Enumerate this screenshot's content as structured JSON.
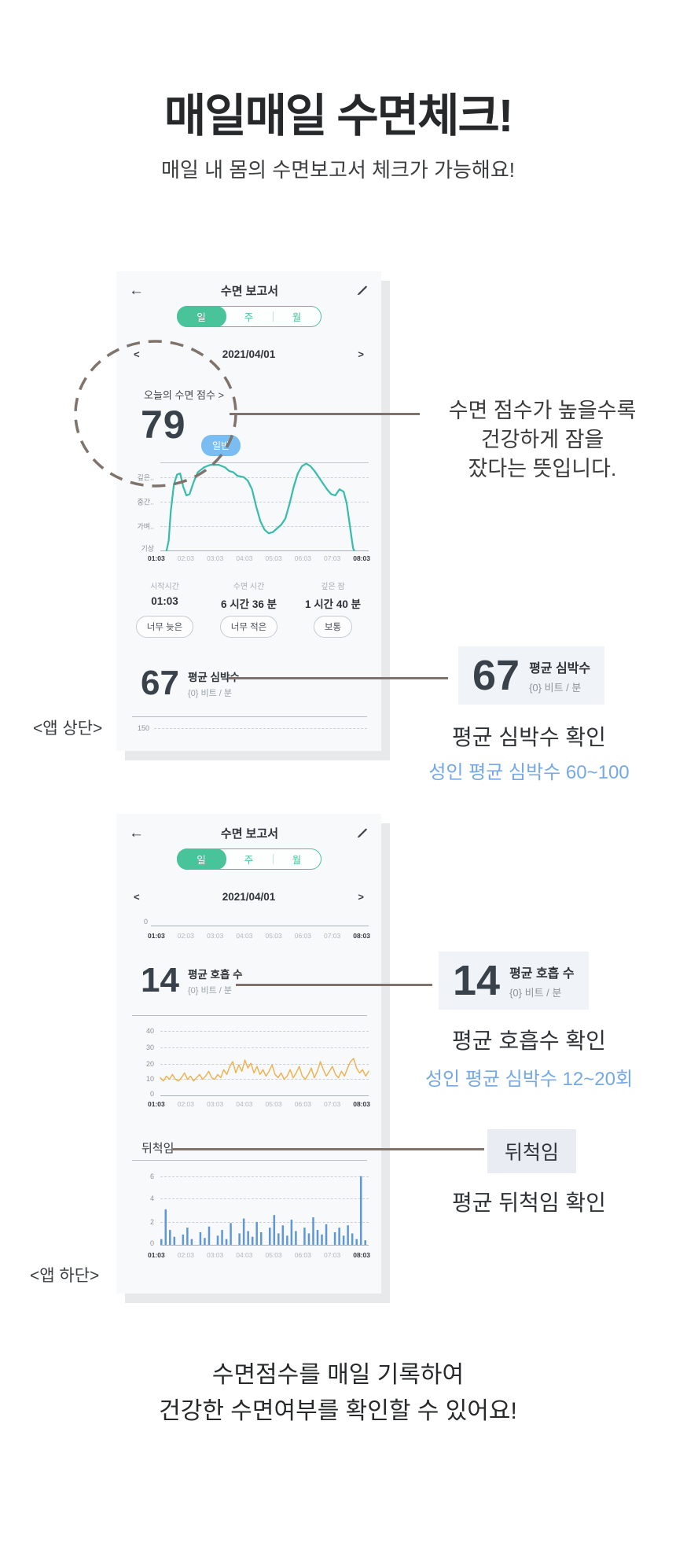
{
  "page": {
    "title": "매일매일 수면체크!",
    "subtitle": "매일 내 몸의 수면보고서 체크가 가능해요!",
    "footer_line1": "수면점수를 매일 기록하여",
    "footer_line2": "건강한 수면여부를 확인할 수 있어요!",
    "label_app_top": "<앱 상단>",
    "label_app_bottom": "<앱 하단>"
  },
  "colors": {
    "accent_green": "#49c39a",
    "stage_line_teal": "#36bcab",
    "badge_blue": "#79bdf2",
    "resp_orange": "#efb04a",
    "bar_blue": "#5f96d8",
    "annotation_brown": "#7f736b",
    "blue_text": "#74a9e6",
    "phone_bg": "#f7f9fb"
  },
  "phone1": {
    "header": {
      "back": "←",
      "title": "수면 보고서"
    },
    "tabs": {
      "day": "일",
      "week": "주",
      "month": "월"
    },
    "date_nav": {
      "prev": "<",
      "value": "2021/04/01",
      "next": ">"
    },
    "score": {
      "label": "오늘의 수면 점수 >",
      "value": "79",
      "badge": "일반"
    },
    "stats": [
      {
        "label": "시작시간",
        "value": "01:03",
        "tag": "너무 늦은"
      },
      {
        "label": "수면 시간",
        "value": "6 시간 36 분",
        "tag": "너무 적은"
      },
      {
        "label": "깊은 잠",
        "value": "1 시간 40 분",
        "tag": "보통"
      }
    ],
    "heart": {
      "value": "67",
      "label": "평균 심박수",
      "unit": "{0} 비트 / 분",
      "axis_tick": "150"
    }
  },
  "phone2": {
    "header": {
      "back": "←",
      "title": "수면 보고서"
    },
    "tabs": {
      "day": "일",
      "week": "주",
      "month": "월"
    },
    "date_nav": {
      "prev": "<",
      "value": "2021/04/01",
      "next": ">"
    },
    "mini_axis_tick": "0",
    "breath": {
      "value": "14",
      "label": "평균 호흡 수",
      "unit": "{0} 비트 / 분"
    },
    "movement_label": "뒤척임"
  },
  "annotations": {
    "score_note_line1": "수면 점수가 높을수록",
    "score_note_line2": "건강하게 잠을",
    "score_note_line3": "잤다는 뜻입니다.",
    "heart_box": {
      "value": "67",
      "label": "평균 심박수",
      "unit": "{0} 비트 / 분"
    },
    "heart_caption": "평균 심박수 확인",
    "heart_sub": "성인 평균 심박수 60~100",
    "breath_box": {
      "value": "14",
      "label": "평균 호흡 수",
      "unit": "{0} 비트 / 분"
    },
    "breath_caption": "평균 호흡수 확인",
    "breath_sub": "성인 평균 심박수 12~20회",
    "movement_box": "뒤척임",
    "movement_caption": "평균 뒤척임 확인"
  },
  "chart_data": [
    {
      "type": "line",
      "name": "수면 단계 그래프",
      "color": "#36bcab",
      "ymax": 3.6,
      "y_labels": [
        "깊은..",
        "중간..",
        "가벼..",
        "기상"
      ],
      "y_values": [
        3,
        2,
        1,
        0
      ],
      "x_ticks": [
        "01:03",
        "02:03",
        "03:03",
        "04:03",
        "05:03",
        "06:03",
        "07:03",
        "08:03"
      ],
      "points": [
        [
          3,
          0
        ],
        [
          4,
          0.4
        ],
        [
          5,
          1.6
        ],
        [
          6.5,
          2.7
        ],
        [
          8,
          3.1
        ],
        [
          9.5,
          3.15
        ],
        [
          11,
          2.6
        ],
        [
          12.5,
          2.25
        ],
        [
          14,
          2.3
        ],
        [
          16,
          2.8
        ],
        [
          18,
          3.2
        ],
        [
          21,
          3.4
        ],
        [
          24,
          3.5
        ],
        [
          28,
          3.5
        ],
        [
          31,
          3.4
        ],
        [
          33,
          3.25
        ],
        [
          35,
          3.2
        ],
        [
          37,
          3.05
        ],
        [
          40,
          3.0
        ],
        [
          42,
          2.85
        ],
        [
          44,
          2.5
        ],
        [
          46,
          1.8
        ],
        [
          48,
          1.2
        ],
        [
          50,
          0.85
        ],
        [
          52,
          0.7
        ],
        [
          54,
          0.75
        ],
        [
          56,
          0.9
        ],
        [
          58,
          1.05
        ],
        [
          60,
          1.3
        ],
        [
          62,
          1.9
        ],
        [
          64,
          2.6
        ],
        [
          66,
          3.15
        ],
        [
          68,
          3.45
        ],
        [
          70,
          3.55
        ],
        [
          72,
          3.45
        ],
        [
          74,
          3.25
        ],
        [
          76,
          3.0
        ],
        [
          78,
          2.75
        ],
        [
          80,
          2.5
        ],
        [
          82,
          2.3
        ],
        [
          84,
          2.25
        ],
        [
          86,
          2.5
        ],
        [
          88,
          2.4
        ],
        [
          89.5,
          1.9
        ],
        [
          91,
          1.0
        ],
        [
          92.5,
          0.1
        ],
        [
          93,
          0
        ]
      ]
    },
    {
      "type": "line",
      "name": "평균 심박수 그래프(하단 잘림)",
      "average": "67",
      "y_ticks": [
        "150"
      ],
      "values": []
    },
    {
      "type": "line",
      "name": "상단 미니 그래프(잘림)",
      "y_ticks": [
        "0"
      ],
      "x_ticks": [
        "01:03",
        "02:03",
        "03:03",
        "04:03",
        "05:03",
        "06:03",
        "07:03",
        "08:03"
      ],
      "values": []
    },
    {
      "type": "line",
      "name": "평균 호흡 수 그래프",
      "color": "#efb04a",
      "average": "14",
      "ymax": 44,
      "y_ticks": [
        "40",
        "30",
        "20",
        "10",
        "0"
      ],
      "ylim": [
        0,
        40
      ],
      "x_ticks": [
        "01:03",
        "02:03",
        "03:03",
        "04:03",
        "05:03",
        "06:03",
        "07:03",
        "08:03"
      ],
      "values": [
        11,
        9,
        12,
        10,
        13,
        10,
        9,
        11,
        14,
        10,
        12,
        9,
        11,
        13,
        10,
        12,
        15,
        11,
        10,
        13,
        11,
        16,
        13,
        18,
        21,
        14,
        19,
        15,
        22,
        17,
        20,
        14,
        18,
        13,
        16,
        12,
        15,
        19,
        13,
        11,
        14,
        10,
        12,
        16,
        11,
        14,
        18,
        12,
        10,
        13,
        17,
        11,
        15,
        21,
        16,
        12,
        15,
        18,
        13,
        11,
        15,
        12,
        17,
        21,
        23,
        17,
        14,
        16,
        12,
        15
      ]
    },
    {
      "type": "bar",
      "name": "뒤척임 그래프",
      "color": "#5f96d8",
      "ymax": 6.6,
      "y_ticks": [
        "6",
        "4",
        "2",
        "0"
      ],
      "ylim": [
        0,
        6
      ],
      "x_ticks": [
        "01:03",
        "02:03",
        "03:03",
        "04:03",
        "05:03",
        "06:03",
        "07:03",
        "08:03"
      ],
      "values": [
        0.5,
        3.1,
        1.3,
        0.7,
        0,
        0.9,
        1.5,
        0.5,
        0,
        1.1,
        0.6,
        1.6,
        0,
        0.8,
        1.3,
        0.5,
        1.9,
        0,
        1.0,
        2.3,
        1.2,
        0.7,
        2.0,
        1.1,
        0,
        1.5,
        2.6,
        1.0,
        1.7,
        0.8,
        2.2,
        1.2,
        0,
        1.5,
        1.0,
        2.4,
        1.3,
        0.9,
        1.8,
        0,
        1.1,
        1.5,
        0.8,
        1.7,
        1.0,
        0.5,
        6.0,
        0.4
      ]
    }
  ]
}
